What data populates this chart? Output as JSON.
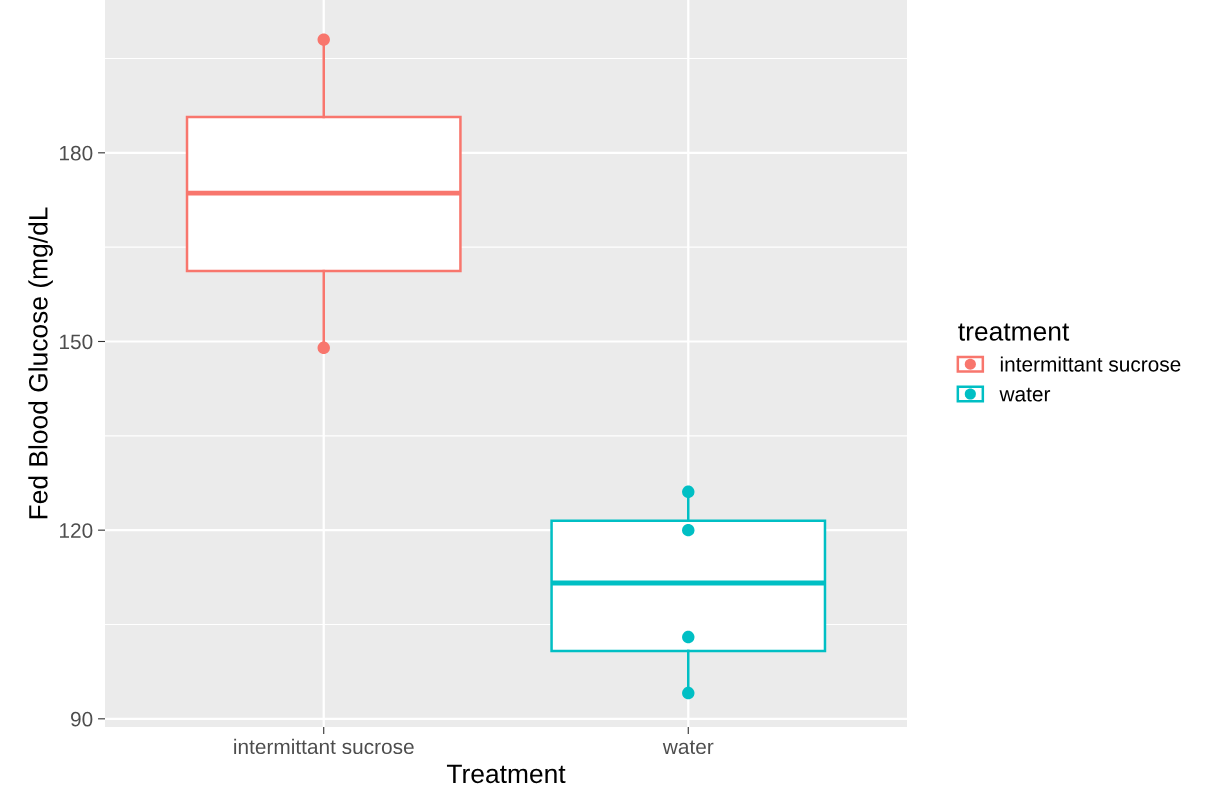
{
  "chart_data": {
    "type": "box",
    "xlabel": "Treatment",
    "ylabel": "Fed Blood Glucose (mg/dL",
    "legend_title": "treatment",
    "categories": [
      "intermittant sucrose",
      "water"
    ],
    "ylim": [
      88.7,
      204.3
    ],
    "yticks": [
      90,
      120,
      150,
      180,
      {
        "value": 105,
        "label": null
      },
      {
        "value": 135,
        "label": null
      },
      {
        "value": 165,
        "label": null
      },
      {
        "value": 195,
        "label": null
      }
    ],
    "grid": true,
    "legend": "right",
    "series": [
      {
        "name": "intermittant sucrose",
        "color": "#f8766d",
        "boxes": [
          {
            "low": 149,
            "q1": 161.2,
            "median": 173.6,
            "q3": 185.7,
            "high": 198
          },
          null
        ]
      },
      {
        "name": "water",
        "color": "#00bfc4",
        "boxes": [
          null,
          {
            "low": 94.1,
            "q1": 100.8,
            "median": 111.6,
            "q3": 121.5,
            "high": 126.1
          }
        ]
      },
      {
        "type": "scatter",
        "color": "#f8766d",
        "x": [
          "intermittant sucrose",
          "intermittant sucrose"
        ],
        "values": [
          198,
          149
        ]
      },
      {
        "type": "scatter",
        "color": "#00bfc4",
        "x": [
          "water",
          "water",
          "water",
          "water"
        ],
        "values": [
          126.1,
          120,
          103,
          94.1
        ]
      }
    ]
  }
}
